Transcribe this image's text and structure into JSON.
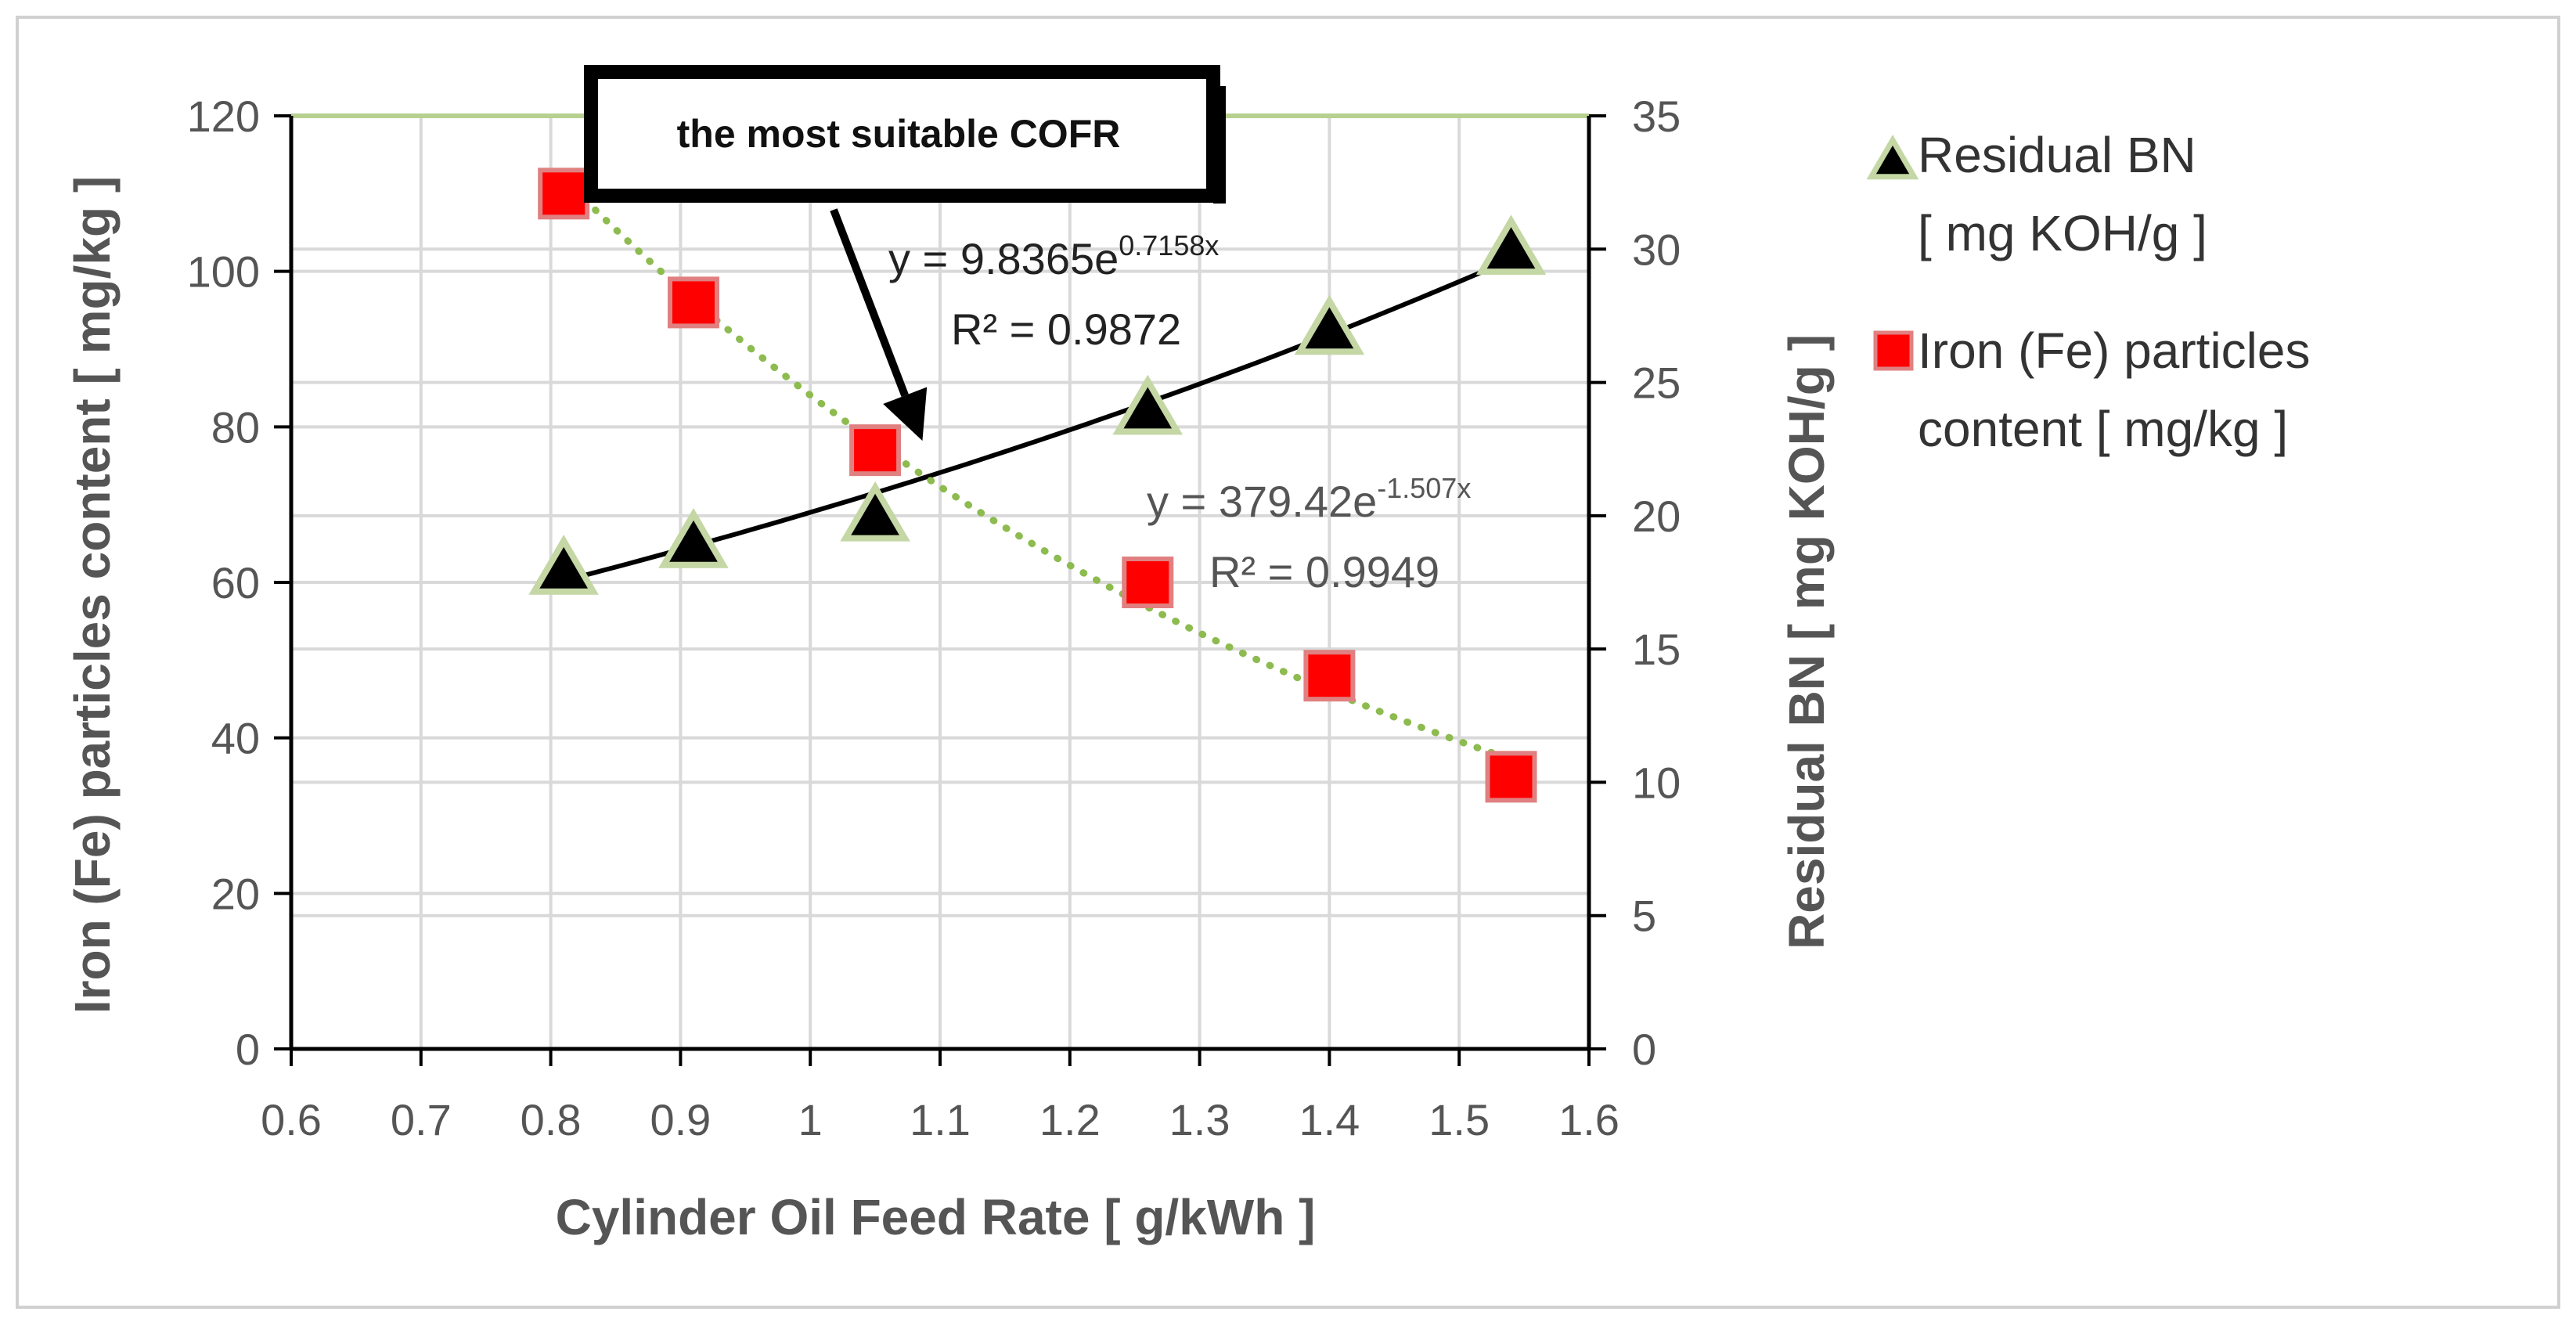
{
  "chart_data": {
    "type": "scatter",
    "title": "",
    "xlabel": "Cylinder Oil Feed Rate  [ g/kWh ]",
    "ylabel_left": "Iron (Fe) particles content [ mg/kg ]",
    "ylabel_right": "Residual BN [ mg KOH/g ]",
    "xlim": [
      0.6,
      1.6
    ],
    "xticks": [
      "0.6",
      "0.7",
      "0.8",
      "0.9",
      "1",
      "1.1",
      "1.2",
      "1.3",
      "1.4",
      "1.5",
      "1.6"
    ],
    "ylim_left": [
      0,
      120
    ],
    "yticks_left": [
      "0",
      "20",
      "40",
      "60",
      "80",
      "100",
      "120"
    ],
    "ylim_right": [
      0,
      35
    ],
    "yticks_right": [
      "0",
      "5",
      "10",
      "15",
      "20",
      "25",
      "30",
      "35"
    ],
    "grid": true,
    "legend_position": "right",
    "series": [
      {
        "name": "Residual BN\n[ mg KOH/g ]",
        "legend_lines": [
          "Residual BN",
          "[ mg KOH/g ]"
        ],
        "axis": "right",
        "marker": "triangle",
        "color": "#000000",
        "edge_color": "#c4d7a4",
        "x": [
          0.81,
          0.91,
          1.05,
          1.26,
          1.4,
          1.54
        ],
        "y": [
          18.0,
          19.0,
          20.0,
          24.0,
          27.0,
          30.0
        ],
        "trendline": {
          "type": "exponential",
          "a": 9.8365,
          "b": 0.7158,
          "color": "#000000",
          "style": "solid",
          "equation": "y = 9.8365e",
          "exponent": "0.7158x",
          "r2": "R² = 0.9872"
        }
      },
      {
        "name": "Iron (Fe) particles content  [ mg/kg ]",
        "legend_lines": [
          "Iron (Fe) particles",
          "content  [ mg/kg ]"
        ],
        "axis": "left",
        "marker": "square",
        "color": "#ff0000",
        "edge_color": "#e08080",
        "x": [
          0.81,
          0.91,
          1.05,
          1.26,
          1.4,
          1.54
        ],
        "y": [
          110,
          96,
          77,
          60,
          48,
          35
        ],
        "trendline": {
          "type": "exponential",
          "a": 379.42,
          "b": -1.507,
          "color": "#8dbb4f",
          "style": "dotted",
          "equation": "y = 379.42e",
          "exponent": "-1.507x",
          "r2": "R² = 0.9949"
        }
      }
    ],
    "annotations": [
      {
        "text": "the most suitable COFR",
        "arrow_to": {
          "x": 1.09,
          "y_left": 77
        }
      }
    ],
    "colors": {
      "grid": "#d9d9d9",
      "top_border": "#b7d08e",
      "axis": "#000000",
      "text": "#555555"
    }
  }
}
